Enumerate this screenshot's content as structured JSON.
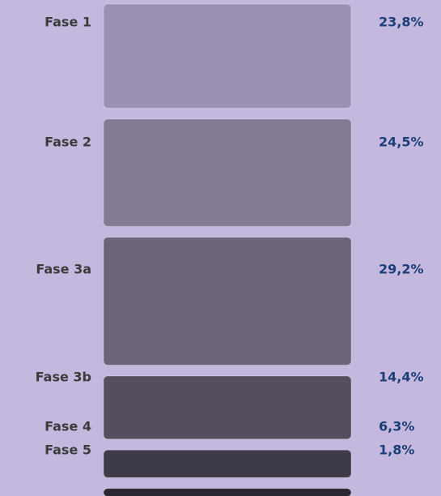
{
  "chart_data": {
    "type": "stacked-column",
    "categories": [
      "Fase 1",
      "Fase 2",
      "Fase 3a",
      "Fase 3b",
      "Fase 4",
      "Fase 5"
    ],
    "values": [
      23.8,
      24.5,
      29.2,
      14.4,
      6.3,
      1.8
    ],
    "value_labels": [
      "23,8%",
      "24,5%",
      "29,2%",
      "14,4%",
      "6,3%",
      "1,8%"
    ],
    "colors": [
      "#9b91b4",
      "#837a95",
      "#6b6379",
      "#554e5f",
      "#3f3a47",
      "#2a2730"
    ]
  }
}
